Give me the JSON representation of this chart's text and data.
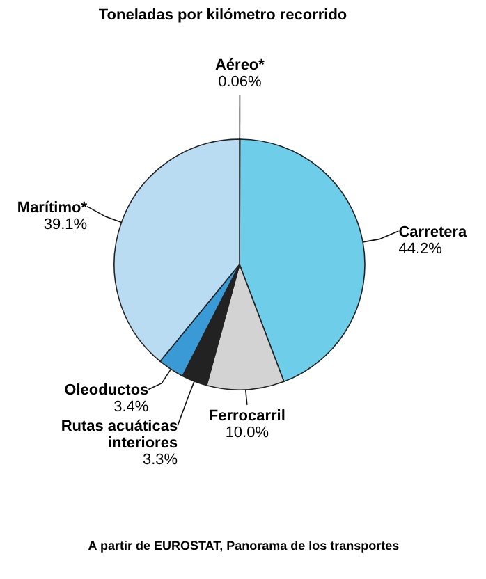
{
  "chart_data": {
    "type": "pie",
    "title": "Toneladas por kilómetro recorrido",
    "categories": [
      "Aéreo*",
      "Carretera",
      "Ferrocarril",
      "Rutas acuáticas interiores",
      "Oleoductos",
      "Marítimo*"
    ],
    "values": [
      0.06,
      44.2,
      10.0,
      3.3,
      3.4,
      39.1
    ],
    "value_labels": [
      "0.06%",
      "44.2%",
      "10.0%",
      "3.3%",
      "3.4%",
      "39.1%"
    ],
    "colors": [
      "#ffffff",
      "#6ecde9",
      "#d3d3d3",
      "#222222",
      "#3a9ad6",
      "#badcf2"
    ],
    "annotations": [
      "A partir de EUROSTAT, Panorama de los transportes"
    ]
  }
}
